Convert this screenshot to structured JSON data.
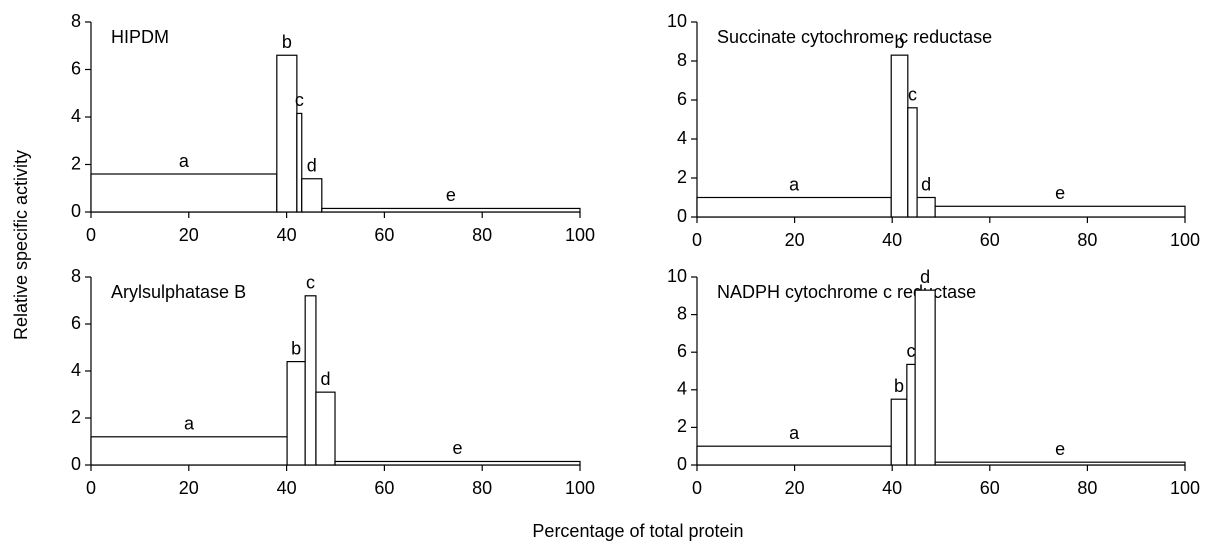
{
  "xlabel": "Percentage of total protein",
  "ylabel": "Relative specific activity",
  "chart_data": [
    {
      "type": "histogram",
      "title": "HIPDM",
      "bins": [
        0,
        38,
        42.1,
        43.1,
        47.2,
        100
      ],
      "values": [
        1.6,
        6.6,
        4.15,
        1.4,
        0.15
      ],
      "bar_labels": [
        "a",
        "b",
        "c",
        "d",
        "e"
      ],
      "xlim": [
        0,
        100
      ],
      "xticks": [
        0,
        20,
        40,
        60,
        80,
        100
      ],
      "ylim": [
        0,
        8
      ],
      "yticks": [
        0,
        2,
        4,
        6,
        8
      ]
    },
    {
      "type": "histogram",
      "title": "Succinate cytochrome c reductase",
      "bins": [
        0,
        39.8,
        43.2,
        45.1,
        48.8,
        100
      ],
      "values": [
        1.0,
        8.3,
        5.6,
        1.0,
        0.55
      ],
      "bar_labels": [
        "a",
        "b",
        "c",
        "d",
        "e"
      ],
      "xlim": [
        0,
        100
      ],
      "xticks": [
        0,
        20,
        40,
        60,
        80,
        100
      ],
      "ylim": [
        0,
        10
      ],
      "yticks": [
        0,
        2,
        4,
        6,
        8,
        10
      ]
    },
    {
      "type": "histogram",
      "title": "Arylsulphatase B",
      "bins": [
        0,
        40.1,
        43.8,
        46.0,
        49.9,
        100
      ],
      "values": [
        1.2,
        4.4,
        7.2,
        3.1,
        0.15
      ],
      "bar_labels": [
        "a",
        "b",
        "c",
        "d",
        "e"
      ],
      "xlim": [
        0,
        100
      ],
      "xticks": [
        0,
        20,
        40,
        60,
        80,
        100
      ],
      "ylim": [
        0,
        8
      ],
      "yticks": [
        0,
        2,
        4,
        6,
        8
      ]
    },
    {
      "type": "histogram",
      "title": "NADPH cytochrome c reductase",
      "bins": [
        0,
        39.8,
        43.0,
        44.7,
        48.8,
        100
      ],
      "values": [
        1.0,
        3.5,
        5.35,
        9.3,
        0.15
      ],
      "bar_labels": [
        "a",
        "b",
        "c",
        "d",
        "e"
      ],
      "xlim": [
        0,
        100
      ],
      "xticks": [
        0,
        20,
        40,
        60,
        80,
        100
      ],
      "ylim": [
        0,
        10
      ],
      "yticks": [
        0,
        2,
        4,
        6,
        8,
        10
      ]
    }
  ]
}
